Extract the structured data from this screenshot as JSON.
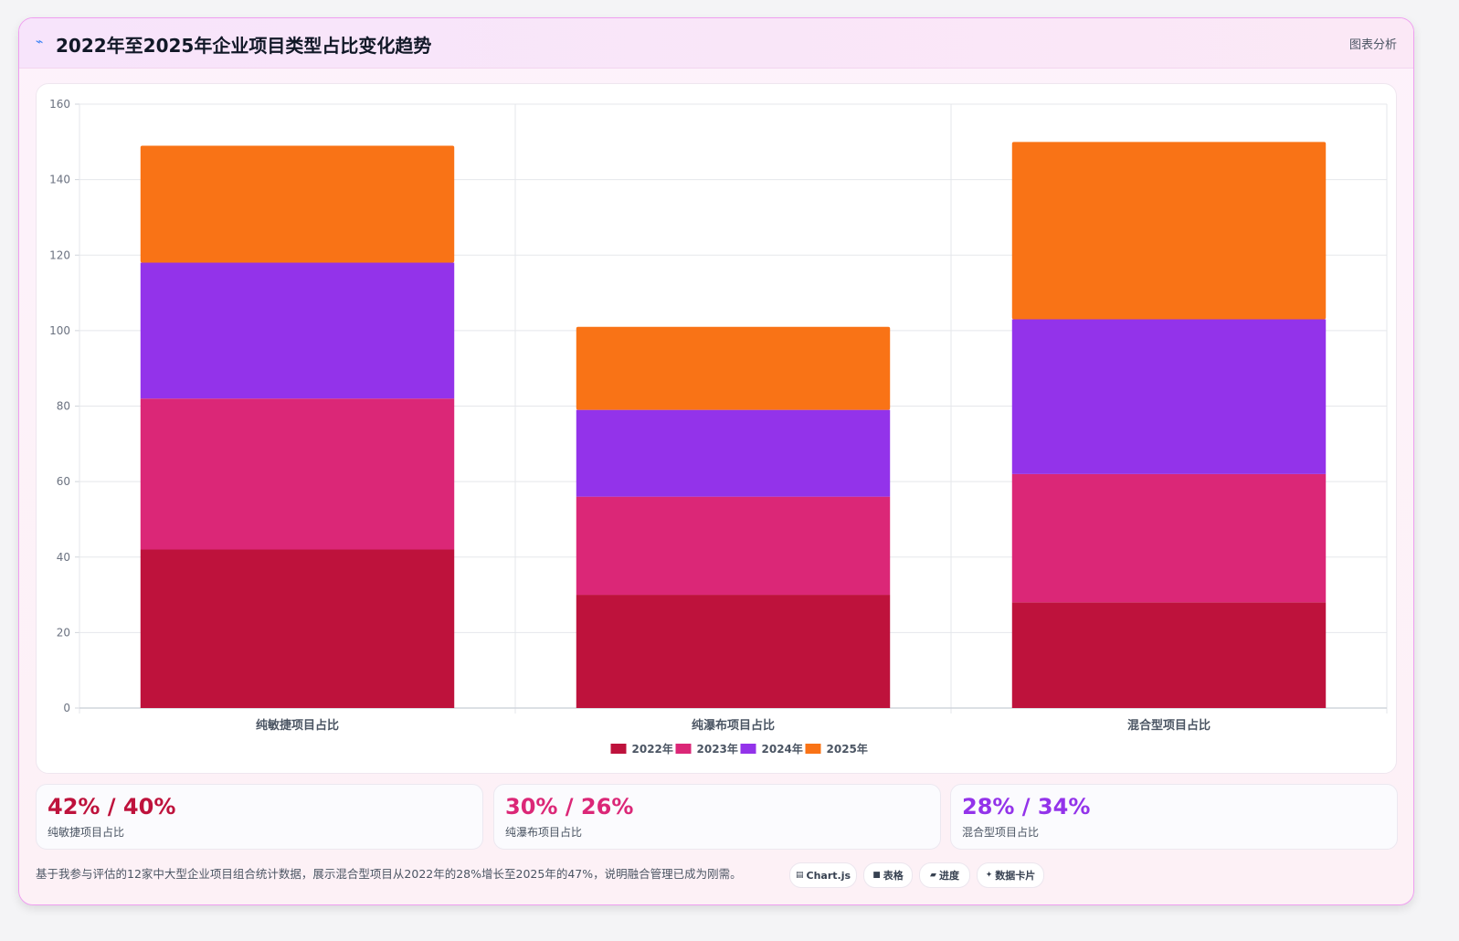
{
  "header": {
    "icon": "trend-icon",
    "title": "2022年至2025年企业项目类型占比变化趋势",
    "button_label": "图表分析"
  },
  "chart_data": {
    "type": "bar",
    "stacked": true,
    "categories": [
      "纯敏捷项目占比",
      "纯瀑布项目占比",
      "混合型项目占比"
    ],
    "series": [
      {
        "name": "2022年",
        "color": "#be123c",
        "values": [
          42,
          30,
          28
        ]
      },
      {
        "name": "2023年",
        "color": "#db2777",
        "values": [
          40,
          26,
          34
        ]
      },
      {
        "name": "2024年",
        "color": "#9333ea",
        "values": [
          36,
          23,
          41
        ]
      },
      {
        "name": "2025年",
        "color": "#f97316",
        "values": [
          31,
          22,
          47
        ]
      }
    ],
    "ylim": [
      0,
      160
    ],
    "yticks": [
      0,
      20,
      40,
      60,
      80,
      100,
      120,
      140,
      160
    ],
    "grid": true,
    "legend": "bottom"
  },
  "stats": [
    {
      "value": "42% / 40%",
      "label": "纯敏捷项目占比",
      "color": "#be123c"
    },
    {
      "value": "30% / 26%",
      "label": "纯瀑布项目占比",
      "color": "#db2777"
    },
    {
      "value": "28% / 34%",
      "label": "混合型项目占比",
      "color": "#9333ea"
    }
  ],
  "footnote": "基于我参与评估的12家中大型企业项目组合统计数据，展示混合型项目从2022年的28%增长至2025年的47%，说明融合管理已成为刚需。",
  "chips": [
    {
      "icon": "chart-icon",
      "label": "Chart.js"
    },
    {
      "icon": "table-icon",
      "label": "表格"
    },
    {
      "icon": "progress-icon",
      "label": "进度"
    },
    {
      "icon": "sparkle-icon",
      "label": "数据卡片"
    }
  ]
}
